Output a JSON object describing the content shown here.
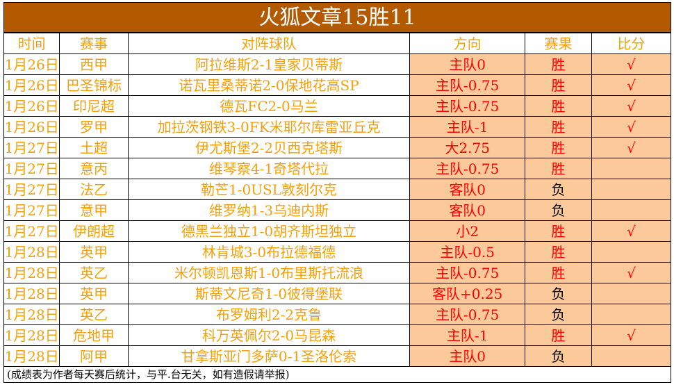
{
  "title": "火狐文章15胜11",
  "headers": [
    "时间",
    "赛事",
    "对阵球队",
    "方向",
    "赛果",
    "比分"
  ],
  "rows": [
    [
      "1月26日",
      "西甲",
      "阿拉维斯2-1皇家贝蒂斯",
      "主队0",
      "胜",
      "√"
    ],
    [
      "1月26日",
      "巴圣锦标",
      "诺瓦里桑蒂诺2-0保地花高SP",
      "主队-0.75",
      "胜",
      "√"
    ],
    [
      "1月26日",
      "印尼超",
      "德瓦FC2-0马兰",
      "主队-0.75",
      "胜",
      "√"
    ],
    [
      "1月26日",
      "罗甲",
      "加拉茨钢铁3-0FK米耶尔库雷亚丘克",
      "主队-1",
      "胜",
      "√"
    ],
    [
      "1月27日",
      "土超",
      "伊尤斯堡2-2贝西克塔斯",
      "大2.75",
      "胜",
      "√"
    ],
    [
      "1月27日",
      "意丙",
      "维琴察4-1奇塔代拉",
      "主队-0.75",
      "胜",
      ""
    ],
    [
      "1月27日",
      "法乙",
      "勒芒1-0USL敦刻尔克",
      "客队0",
      "负",
      ""
    ],
    [
      "1月27日",
      "意甲",
      "维罗纳1-3乌迪内斯",
      "客队0",
      "负",
      ""
    ],
    [
      "1月27日",
      "伊朗超",
      "德黑兰独立1-0胡齐斯坦独立",
      "小2",
      "胜",
      "√"
    ],
    [
      "1月28日",
      "英甲",
      "林肯城3-0布拉德福德",
      "主队-0.5",
      "胜",
      ""
    ],
    [
      "1月28日",
      "英乙",
      "米尔顿凯恩斯1-0布里斯托流浪",
      "主队-0.75",
      "胜",
      "√"
    ],
    [
      "1月28日",
      "英甲",
      "斯蒂文尼奇1-0彼得堡联",
      "客队+0.25",
      "负",
      ""
    ],
    [
      "1月28日",
      "英乙",
      "布罗姆利2-2克鲁",
      "主队-0.75",
      "负",
      ""
    ],
    [
      "1月28日",
      "危地甲",
      "科万英佩尔2-0马昆森",
      "主队-1",
      "胜",
      "√"
    ],
    [
      "1月28日",
      "阿甲",
      "甘拿斯亚门多萨0-1圣洛伦索",
      "主队0",
      "负",
      ""
    ]
  ],
  "footer": "(成绩表为作者每天赛后统计，与平.台无关，如有造假请举报)",
  "colors": {
    "title_bg": "#b35900",
    "text": "#f5a00a",
    "highlight_bg": "#fcc99b",
    "win": "#ff0000",
    "lose": "#000000"
  }
}
